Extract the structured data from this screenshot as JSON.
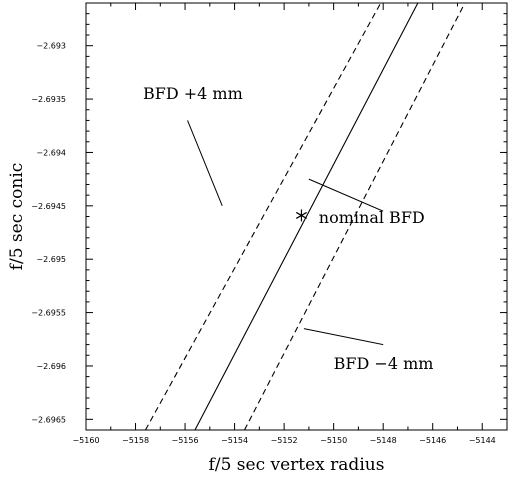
{
  "chart_data": {
    "type": "line",
    "xlabel": "f/5 sec vertex radius",
    "ylabel": "f/5 sec conic",
    "xlim": [
      -5160,
      -5143
    ],
    "ylim": [
      -2.6966,
      -2.6926
    ],
    "x_ticks": [
      -5160,
      -5158,
      -5156,
      -5154,
      -5152,
      -5150,
      -5148,
      -5146,
      -5144
    ],
    "x_tick_labels": [
      "−5160",
      "−5158",
      "−5156",
      "−5154",
      "−5152",
      "−5150",
      "−5148",
      "−5146",
      "−5144"
    ],
    "y_ticks": [
      -2.693,
      -2.6935,
      -2.694,
      -2.6945,
      -2.695,
      -2.6955,
      -2.696,
      -2.6965
    ],
    "y_tick_labels": [
      "−2.693",
      "−2.6935",
      "−2.694",
      "−2.6945",
      "−2.695",
      "−2.6955",
      "−2.696",
      "−2.6965"
    ],
    "series": [
      {
        "style": "dashed",
        "x": [
          -5157.6,
          -5148.1
        ],
        "y": [
          -2.6966,
          -2.6926
        ]
      },
      {
        "style": "solid",
        "x": [
          -5155.6,
          -5146.6
        ],
        "y": [
          -2.6966,
          -2.6926
        ]
      },
      {
        "style": "dashed",
        "x": [
          -5153.6,
          -5144.7
        ],
        "y": [
          -2.6966,
          -2.6926
        ]
      }
    ],
    "marker": {
      "symbol": "asterisk",
      "x": -5151.3,
      "y": -2.69459
    },
    "annotations": [
      {
        "text": "BFD +4 mm",
        "x": -5157.7,
        "y": -2.6935,
        "leader": [
          [
            -5155.9,
            -2.6937
          ],
          [
            -5154.5,
            -2.6945
          ]
        ]
      },
      {
        "text": "nominal BFD",
        "x": -5150.6,
        "y": -2.69466,
        "leader": [
          [
            -5151.0,
            -2.69425
          ],
          [
            -5148.0,
            -2.69455
          ]
        ]
      },
      {
        "text": "BFD −4 mm",
        "x": -5150.0,
        "y": -2.69603,
        "leader": [
          [
            -5151.2,
            -2.69565
          ],
          [
            -5148.0,
            -2.6958
          ]
        ]
      }
    ]
  }
}
